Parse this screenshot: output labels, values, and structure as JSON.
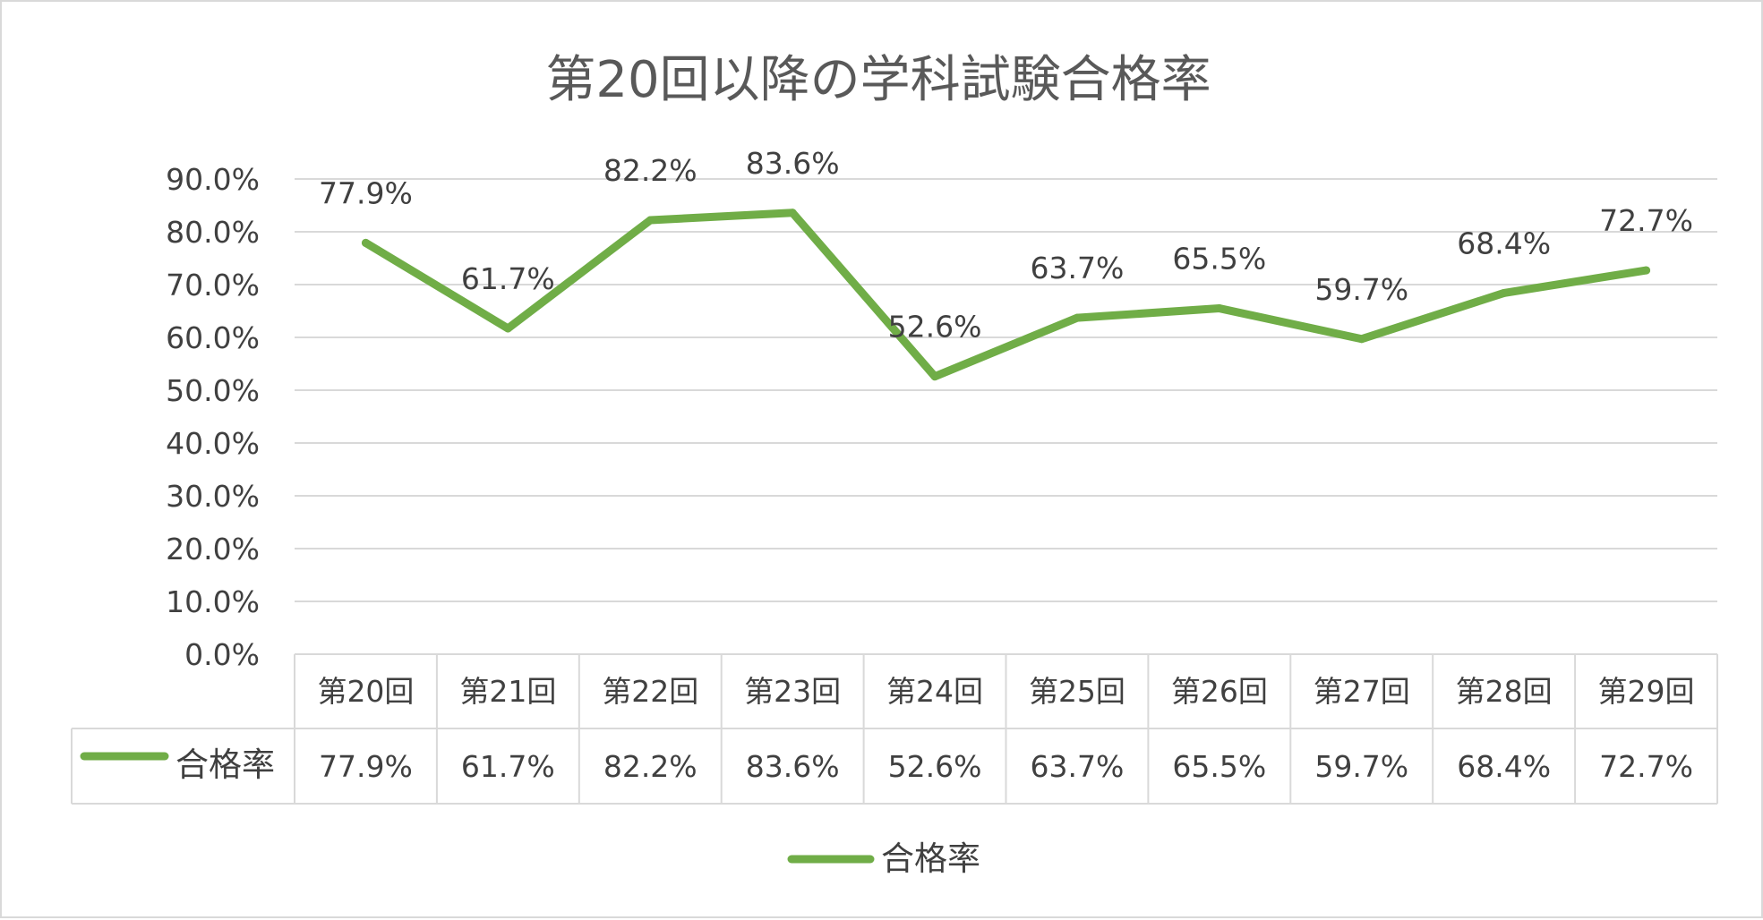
{
  "chart_data": {
    "type": "line",
    "title": "第20回以降の学科試験合格率",
    "categories": [
      "第20回",
      "第21回",
      "第22回",
      "第23回",
      "第24回",
      "第25回",
      "第26回",
      "第27回",
      "第28回",
      "第29回"
    ],
    "series": [
      {
        "name": "合格率",
        "values": [
          77.9,
          61.7,
          82.2,
          83.6,
          52.6,
          63.7,
          65.5,
          59.7,
          68.4,
          72.7
        ],
        "labels": [
          "77.9%",
          "61.7%",
          "82.2%",
          "83.6%",
          "52.6%",
          "63.7%",
          "65.5%",
          "59.7%",
          "68.4%",
          "72.7%"
        ]
      }
    ],
    "y_ticks": [
      "0.0%",
      "10.0%",
      "20.0%",
      "30.0%",
      "40.0%",
      "50.0%",
      "60.0%",
      "70.0%",
      "80.0%",
      "90.0%"
    ],
    "ylim": [
      0,
      90
    ],
    "grid": true,
    "legend_position": "bottom",
    "data_table": true,
    "xlabel": "",
    "ylabel": ""
  },
  "colors": {
    "series": "#70ad47",
    "grid": "#d9d9d9",
    "text": "#404040",
    "title": "#595959"
  }
}
